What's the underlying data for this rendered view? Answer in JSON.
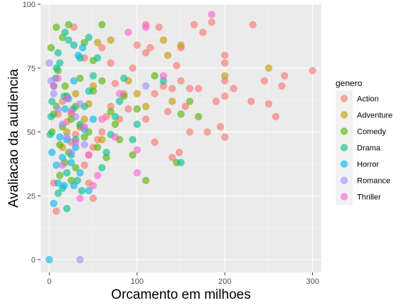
{
  "chart_data": {
    "type": "scatter",
    "title": "",
    "xlabel": "Orcamento em milhoes",
    "ylabel": "Avaliacao da audiencia",
    "xlim": [
      -10,
      310
    ],
    "ylim": [
      -5,
      100
    ],
    "x_ticks": [
      0,
      100,
      200,
      300
    ],
    "y_ticks": [
      0,
      25,
      50,
      75,
      100
    ],
    "x_tick_labels": [
      "0",
      "100",
      "200",
      "300"
    ],
    "y_tick_labels": [
      "0",
      "25",
      "50",
      "75",
      "100"
    ],
    "grid": true,
    "legend_title": "genero",
    "legend_position": "right",
    "series": [
      {
        "name": "Action",
        "color": "#F8766D",
        "points": [
          [
            300,
            74
          ],
          [
            232,
            92
          ],
          [
            250,
            61
          ],
          [
            258,
            56
          ],
          [
            265,
            68
          ],
          [
            268,
            72
          ],
          [
            245,
            70
          ],
          [
            230,
            62
          ],
          [
            210,
            67
          ],
          [
            200,
            80
          ],
          [
            200,
            77
          ],
          [
            200,
            70
          ],
          [
            200,
            64
          ],
          [
            200,
            48
          ],
          [
            185,
            93
          ],
          [
            175,
            89
          ],
          [
            165,
            92
          ],
          [
            160,
            67
          ],
          [
            155,
            60
          ],
          [
            150,
            83
          ],
          [
            150,
            70
          ],
          [
            148,
            42
          ],
          [
            145,
            76
          ],
          [
            140,
            67
          ],
          [
            135,
            58
          ],
          [
            130,
            68
          ],
          [
            125,
            91
          ],
          [
            120,
            65
          ],
          [
            115,
            83
          ],
          [
            110,
            92
          ],
          [
            110,
            81
          ],
          [
            100,
            84
          ],
          [
            95,
            75
          ],
          [
            85,
            65
          ],
          [
            80,
            55
          ],
          [
            75,
            69
          ],
          [
            70,
            60
          ],
          [
            65,
            56
          ],
          [
            60,
            50
          ],
          [
            55,
            47
          ],
          [
            50,
            44
          ],
          [
            45,
            41
          ],
          [
            40,
            37
          ],
          [
            35,
            52
          ],
          [
            30,
            49
          ],
          [
            25,
            46
          ],
          [
            20,
            54
          ],
          [
            15,
            62
          ],
          [
            10,
            57
          ],
          [
            8,
            19
          ],
          [
            5,
            30
          ],
          [
            28,
            91
          ],
          [
            140,
            40
          ],
          [
            170,
            67
          ],
          [
            190,
            62
          ],
          [
            195,
            52
          ],
          [
            180,
            50
          ],
          [
            160,
            50
          ],
          [
            120,
            46
          ],
          [
            110,
            55
          ],
          [
            90,
            59
          ],
          [
            70,
            77
          ],
          [
            60,
            83
          ],
          [
            50,
            24
          ],
          [
            45,
            30
          ],
          [
            40,
            79
          ]
        ]
      },
      {
        "name": "Adventure",
        "color": "#C49A00",
        "points": [
          [
            250,
            75
          ],
          [
            200,
            72
          ],
          [
            150,
            84
          ],
          [
            140,
            62
          ],
          [
            135,
            80
          ],
          [
            130,
            86
          ],
          [
            110,
            60
          ],
          [
            100,
            65
          ],
          [
            90,
            70
          ],
          [
            70,
            86
          ],
          [
            60,
            47
          ],
          [
            55,
            85
          ],
          [
            50,
            68
          ],
          [
            45,
            61
          ],
          [
            40,
            55
          ],
          [
            35,
            52
          ],
          [
            30,
            65
          ],
          [
            25,
            57
          ],
          [
            20,
            50
          ],
          [
            15,
            44
          ]
        ]
      },
      {
        "name": "Comedy",
        "color": "#53B400",
        "points": [
          [
            170,
            56
          ],
          [
            160,
            62
          ],
          [
            150,
            57
          ],
          [
            145,
            38
          ],
          [
            120,
            72
          ],
          [
            110,
            31
          ],
          [
            100,
            59
          ],
          [
            95,
            41
          ],
          [
            85,
            64
          ],
          [
            80,
            47
          ],
          [
            75,
            53
          ],
          [
            70,
            58
          ],
          [
            65,
            40
          ],
          [
            60,
            70
          ],
          [
            55,
            44
          ],
          [
            50,
            66
          ],
          [
            45,
            50
          ],
          [
            40,
            48
          ],
          [
            35,
            71
          ],
          [
            30,
            60
          ],
          [
            25,
            55
          ],
          [
            22,
            42
          ],
          [
            20,
            64
          ],
          [
            18,
            68
          ],
          [
            15,
            52
          ],
          [
            12,
            45
          ],
          [
            10,
            74
          ],
          [
            8,
            60
          ],
          [
            5,
            57
          ],
          [
            3,
            50
          ],
          [
            2,
            83
          ],
          [
            30,
            36
          ],
          [
            25,
            31
          ],
          [
            18,
            38
          ],
          [
            12,
            33
          ],
          [
            40,
            85
          ],
          [
            50,
            78
          ],
          [
            60,
            92
          ],
          [
            15,
            87
          ],
          [
            8,
            91
          ],
          [
            22,
            92
          ]
        ]
      },
      {
        "name": "Drama",
        "color": "#00C094",
        "points": [
          [
            150,
            38
          ],
          [
            130,
            70
          ],
          [
            100,
            53
          ],
          [
            95,
            47
          ],
          [
            85,
            71
          ],
          [
            80,
            62
          ],
          [
            75,
            56
          ],
          [
            70,
            49
          ],
          [
            65,
            42
          ],
          [
            60,
            36
          ],
          [
            55,
            79
          ],
          [
            50,
            72
          ],
          [
            45,
            66
          ],
          [
            40,
            60
          ],
          [
            35,
            53
          ],
          [
            30,
            47
          ],
          [
            25,
            41
          ],
          [
            20,
            34
          ],
          [
            15,
            28
          ],
          [
            10,
            81
          ],
          [
            8,
            75
          ],
          [
            5,
            68
          ],
          [
            3,
            62
          ],
          [
            2,
            56
          ],
          [
            1,
            49
          ],
          [
            22,
            86
          ],
          [
            18,
            89
          ],
          [
            28,
            84
          ],
          [
            35,
            79
          ],
          [
            45,
            87
          ],
          [
            12,
            77
          ],
          [
            7,
            71
          ],
          [
            17,
            64
          ],
          [
            27,
            59
          ],
          [
            32,
            31
          ],
          [
            37,
            27
          ],
          [
            20,
            20
          ],
          [
            10,
            26
          ]
        ]
      },
      {
        "name": "Horror",
        "color": "#00B6EB",
        "points": [
          [
            0,
            0
          ],
          [
            5,
            22
          ],
          [
            10,
            30
          ],
          [
            15,
            40
          ],
          [
            20,
            47
          ],
          [
            25,
            38
          ],
          [
            30,
            44
          ],
          [
            35,
            34
          ],
          [
            40,
            51
          ],
          [
            45,
            27
          ],
          [
            50,
            55
          ],
          [
            8,
            37
          ],
          [
            12,
            48
          ],
          [
            18,
            59
          ],
          [
            22,
            63
          ],
          [
            28,
            70
          ],
          [
            33,
            80
          ],
          [
            38,
            83
          ],
          [
            3,
            42
          ],
          [
            28,
            29
          ],
          [
            17,
            29
          ]
        ]
      },
      {
        "name": "Romance",
        "color": "#A58AFF",
        "points": [
          [
            35,
            0
          ],
          [
            110,
            68
          ],
          [
            0,
            77
          ],
          [
            2,
            70
          ],
          [
            5,
            65
          ],
          [
            10,
            59
          ],
          [
            15,
            53
          ],
          [
            20,
            48
          ],
          [
            25,
            42
          ],
          [
            30,
            56
          ],
          [
            35,
            61
          ],
          [
            40,
            45
          ]
        ]
      },
      {
        "name": "Thriller",
        "color": "#FB61D7",
        "points": [
          [
            185,
            96
          ],
          [
            110,
            91
          ],
          [
            90,
            89
          ],
          [
            130,
            72
          ],
          [
            100,
            43
          ],
          [
            100,
            34
          ],
          [
            80,
            65
          ],
          [
            60,
            55
          ],
          [
            55,
            33
          ],
          [
            50,
            29
          ],
          [
            45,
            41
          ],
          [
            40,
            52
          ],
          [
            35,
            24
          ],
          [
            30,
            46
          ],
          [
            25,
            58
          ],
          [
            20,
            63
          ],
          [
            15,
            37
          ],
          [
            10,
            71
          ],
          [
            5,
            68
          ],
          [
            75,
            48
          ]
        ]
      }
    ]
  }
}
